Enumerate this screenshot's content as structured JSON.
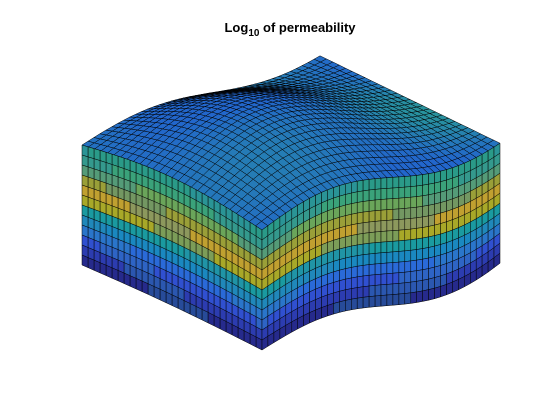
{
  "title": {
    "text": "Log",
    "subscript": "10",
    "suffix": " of permeability"
  }
}
